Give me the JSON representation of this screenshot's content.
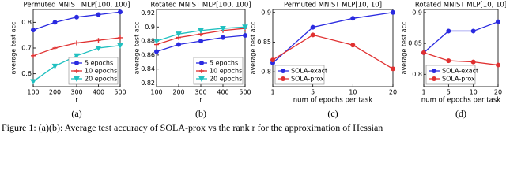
{
  "chart_data": [
    {
      "type": "line",
      "title": "Permuted MNIST MLP[100, 100]",
      "xlabel": "r",
      "ylabel": "average test acc",
      "label": "(a)",
      "x": [
        100,
        200,
        300,
        400,
        500
      ],
      "xlim": [
        100,
        500
      ],
      "xticks": [
        100,
        200,
        300,
        400,
        500
      ],
      "ylim": [
        0.55,
        0.85
      ],
      "yticks": [
        0.6,
        0.7,
        0.8
      ],
      "legend": "lower right",
      "series": [
        {
          "name": "5 epochs",
          "color": "#2a2ae0",
          "marker": "o",
          "values": [
            0.77,
            0.8,
            0.82,
            0.83,
            0.84
          ]
        },
        {
          "name": "10 epochs",
          "color": "#e03030",
          "marker": "+",
          "values": [
            0.67,
            0.7,
            0.72,
            0.73,
            0.74
          ]
        },
        {
          "name": "20 epochs",
          "color": "#20c0c0",
          "marker": "v",
          "values": [
            0.57,
            0.63,
            0.67,
            0.7,
            0.71
          ]
        }
      ]
    },
    {
      "type": "line",
      "title": "Rotated MNIST MLP[100, 100]",
      "xlabel": "r",
      "ylabel": "average test acc",
      "label": "(b)",
      "x": [
        100,
        200,
        300,
        400,
        500
      ],
      "xlim": [
        100,
        500
      ],
      "xticks": [
        100,
        200,
        300,
        400,
        500
      ],
      "ylim": [
        0.815,
        0.925
      ],
      "yticks": [
        0.82,
        0.84,
        0.86,
        0.88,
        0.9,
        0.92
      ],
      "legend": "lower right",
      "series": [
        {
          "name": "5 epochs",
          "color": "#2a2ae0",
          "marker": "o",
          "values": [
            0.865,
            0.875,
            0.88,
            0.885,
            0.888
          ]
        },
        {
          "name": "10 epochs",
          "color": "#e03030",
          "marker": "+",
          "values": [
            0.875,
            0.885,
            0.89,
            0.895,
            0.898
          ]
        },
        {
          "name": "20 epochs",
          "color": "#20c0c0",
          "marker": "v",
          "values": [
            0.88,
            0.89,
            0.895,
            0.898,
            0.9
          ]
        }
      ]
    },
    {
      "type": "line",
      "title": "Permuted MNIST MLP[10, 10]",
      "xlabel": "num of epochs per task",
      "ylabel": "average test acc",
      "label": "(c)",
      "categories": [
        "1",
        "5",
        "10",
        "20"
      ],
      "ylim": [
        0.775,
        0.905
      ],
      "yticks": [
        0.8,
        0.85,
        0.9
      ],
      "legend": "lower left",
      "series": [
        {
          "name": "SOLA-exact",
          "color": "#2a2ae0",
          "marker": "o",
          "values": [
            0.815,
            0.875,
            0.89,
            0.9
          ]
        },
        {
          "name": "SOLA-prox",
          "color": "#e03030",
          "marker": "o",
          "values": [
            0.82,
            0.862,
            0.845,
            0.805
          ]
        }
      ]
    },
    {
      "type": "line",
      "title": "Rotated MNIST MLP[10, 10]",
      "xlabel": "num of epochs per task",
      "ylabel": "average test acc",
      "label": "(d)",
      "categories": [
        "1",
        "5",
        "10",
        "20"
      ],
      "ylim": [
        0.78,
        0.905
      ],
      "yticks": [
        0.8,
        0.85,
        0.9
      ],
      "legend": "lower left",
      "series": [
        {
          "name": "SOLA-exact",
          "color": "#2a2ae0",
          "marker": "o",
          "values": [
            0.835,
            0.87,
            0.87,
            0.885
          ]
        },
        {
          "name": "SOLA-prox",
          "color": "#e03030",
          "marker": "o",
          "values": [
            0.835,
            0.822,
            0.82,
            0.815
          ]
        }
      ]
    }
  ],
  "caption": "Figure 1: (a)(b): Average test accuracy of SOLA-prox vs the rank r for the approximation of Hessian"
}
